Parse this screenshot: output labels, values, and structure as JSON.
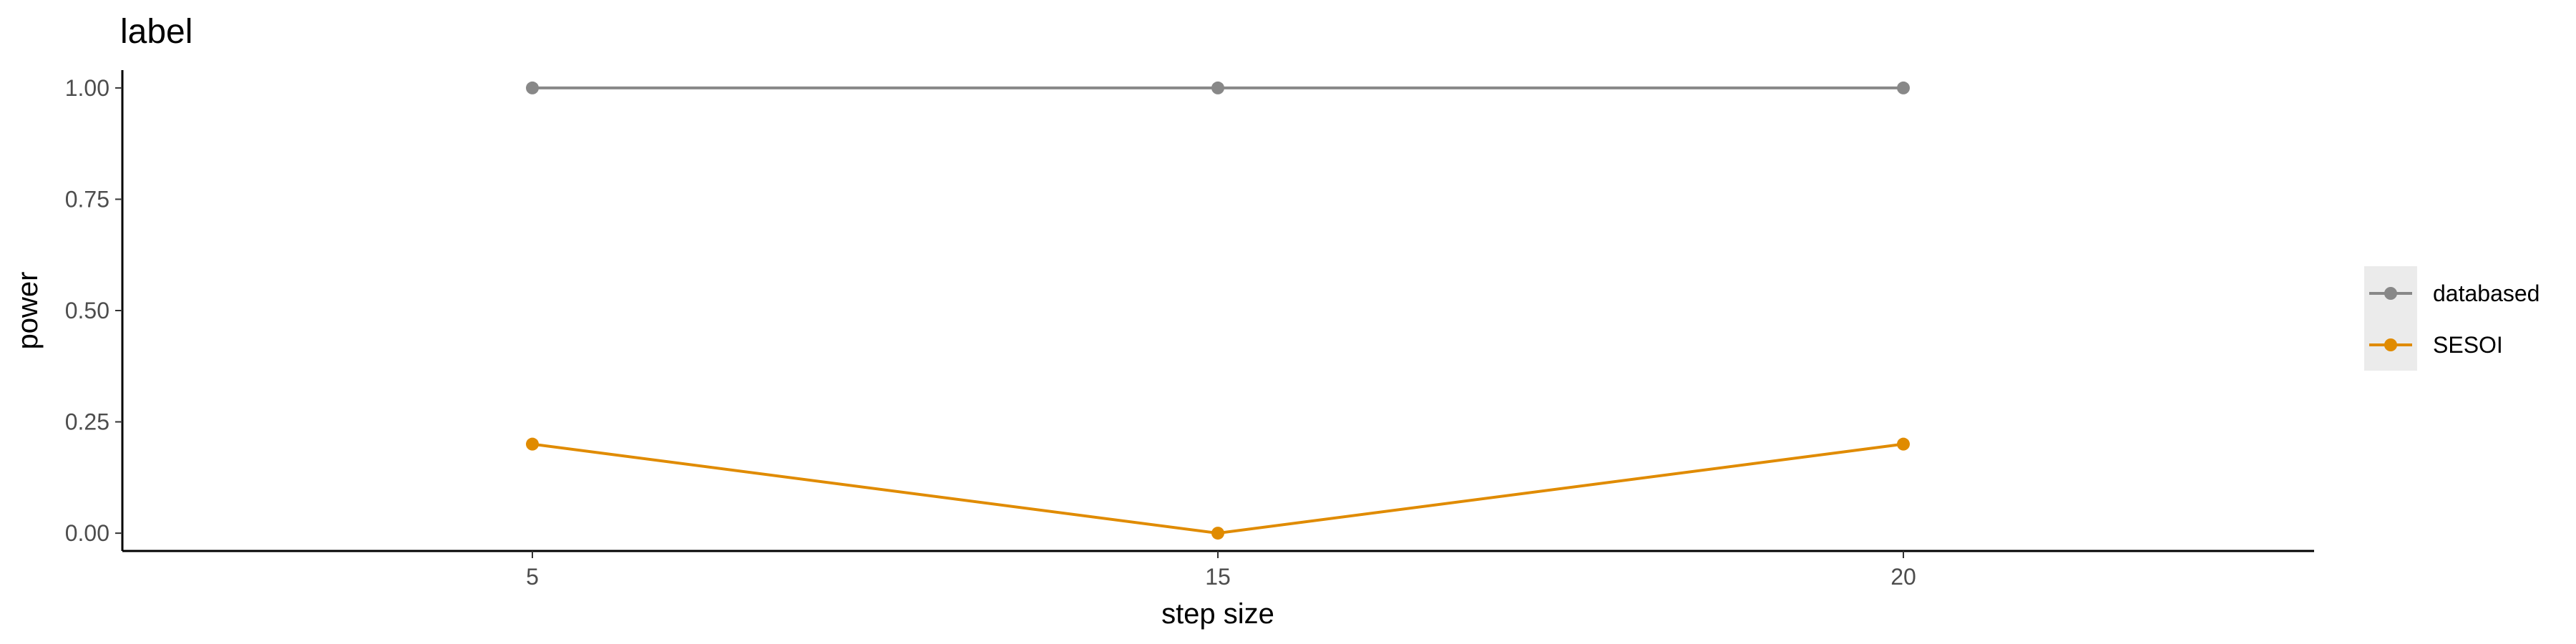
{
  "chart_data": {
    "type": "line",
    "title": "label",
    "xlabel": "step size",
    "ylabel": "power",
    "categories": [
      "5",
      "15",
      "20"
    ],
    "yticks": [
      "0.00",
      "0.25",
      "0.50",
      "0.75",
      "1.00"
    ],
    "ylim": [
      -0.04,
      1.04
    ],
    "grid": false,
    "legend_position": "right",
    "series": [
      {
        "name": "databased",
        "values": [
          1.0,
          1.0,
          1.0
        ],
        "color": "#888888"
      },
      {
        "name": "SESOI",
        "values": [
          0.2,
          0.0,
          0.2
        ],
        "color": "#E08B00"
      }
    ]
  }
}
